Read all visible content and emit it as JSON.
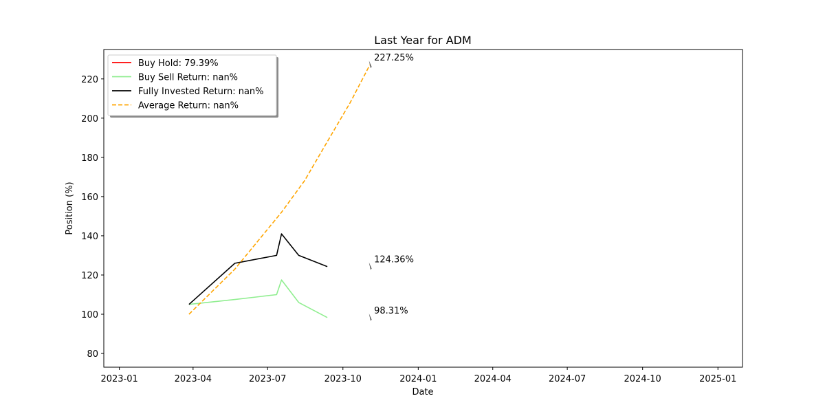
{
  "chart_data": {
    "type": "line",
    "title": "Last Year for ADM",
    "xlabel": "Date",
    "ylabel": "Position (%)",
    "xlim": [
      "2022-12-13",
      "2025-01-31"
    ],
    "ylim": [
      73,
      235
    ],
    "x_ticks": [
      "2023-01",
      "2023-04",
      "2023-07",
      "2023-10",
      "2024-01",
      "2024-04",
      "2024-07",
      "2024-10",
      "2025-01"
    ],
    "y_ticks": [
      80,
      100,
      120,
      140,
      160,
      180,
      200,
      220
    ],
    "grid": false,
    "legend_position": "top-left",
    "series": [
      {
        "name": "Buy Hold: 79.39%",
        "color": "#ff0000",
        "style": "solid",
        "points": []
      },
      {
        "name": "Buy Sell Return: nan%",
        "color": "#90ee90",
        "style": "solid",
        "points": [
          {
            "x": "2023-03-27",
            "y": 105.0
          },
          {
            "x": "2023-05-22",
            "y": 107.5
          },
          {
            "x": "2023-07-12",
            "y": 110.0
          },
          {
            "x": "2023-07-18",
            "y": 117.5
          },
          {
            "x": "2023-08-08",
            "y": 106.0
          },
          {
            "x": "2023-09-12",
            "y": 98.3
          }
        ]
      },
      {
        "name": "Fully Invested Return: nan%",
        "color": "#000000",
        "style": "solid",
        "points": [
          {
            "x": "2023-03-27",
            "y": 105.0
          },
          {
            "x": "2023-05-22",
            "y": 126.0
          },
          {
            "x": "2023-07-12",
            "y": 130.0
          },
          {
            "x": "2023-07-18",
            "y": 141.0
          },
          {
            "x": "2023-08-08",
            "y": 130.0
          },
          {
            "x": "2023-09-12",
            "y": 124.3
          }
        ]
      },
      {
        "name": "Average Return: nan%",
        "color": "#ffa500",
        "style": "dashed",
        "points": [
          {
            "x": "2023-03-27",
            "y": 100.0
          },
          {
            "x": "2023-05-22",
            "y": 123.0
          },
          {
            "x": "2023-07-18",
            "y": 152.0
          },
          {
            "x": "2023-08-15",
            "y": 168.0
          },
          {
            "x": "2023-09-12",
            "y": 188.0
          },
          {
            "x": "2023-10-10",
            "y": 208.0
          },
          {
            "x": "2023-11-03",
            "y": 227.25
          }
        ]
      }
    ],
    "annotations": [
      {
        "text": "227.25%",
        "x": "2023-11-03",
        "y": 227.25
      },
      {
        "text": "124.36%",
        "x": "2023-11-03",
        "y": 124.36
      },
      {
        "text": "98.31%",
        "x": "2023-11-03",
        "y": 98.31
      }
    ]
  }
}
